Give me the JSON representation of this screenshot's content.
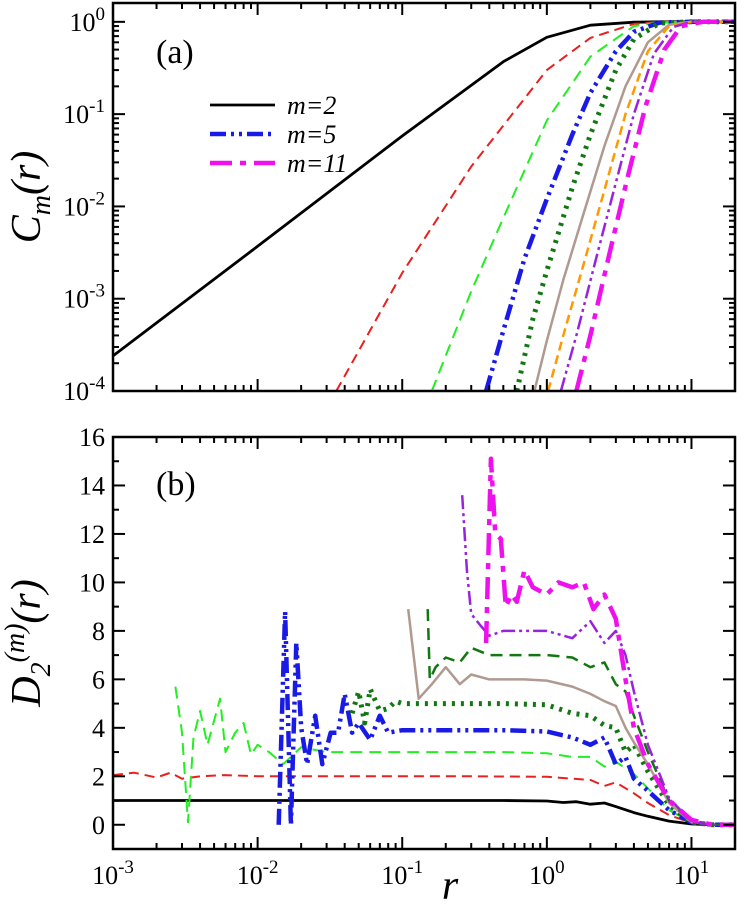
{
  "chart_data": [
    {
      "panel": "(a)",
      "type": "line",
      "xscale": "log",
      "yscale": "log",
      "xlim": [
        0.001,
        20
      ],
      "ylim": [
        0.0001,
        1.6
      ],
      "xlabel": "r",
      "ylabel": "C_m(r)",
      "ylabel_main": "C",
      "ylabel_sub": "m",
      "ylabel_tail": "(r)",
      "ytick_labels": [
        {
          "value": 0.0001,
          "base": "10",
          "exp": "-4"
        },
        {
          "value": 0.001,
          "base": "10",
          "exp": "-3"
        },
        {
          "value": 0.01,
          "base": "10",
          "exp": "-2"
        },
        {
          "value": 0.1,
          "base": "10",
          "exp": "-1"
        },
        {
          "value": 1,
          "base": "10",
          "exp": "0"
        }
      ],
      "legend": [
        {
          "label": "m=2",
          "series": "m=2"
        },
        {
          "label": "m=5",
          "series": "m=5"
        },
        {
          "label": "m=11",
          "series": "m=11"
        }
      ],
      "series": [
        {
          "name": "m=2",
          "color": "#000000",
          "dash": "",
          "width": 2.8,
          "x": [
            0.001,
            0.01,
            0.1,
            0.5,
            1,
            2,
            4,
            6,
            10,
            20
          ],
          "y": [
            0.00024,
            0.0037,
            0.058,
            0.37,
            0.68,
            0.92,
            0.99,
            1,
            1,
            1
          ]
        },
        {
          "name": "m=3",
          "color": "#e8201e",
          "dash": "10,6",
          "width": 2,
          "x": [
            0.035,
            0.1,
            0.3,
            1,
            2,
            4,
            6,
            10,
            20
          ],
          "y": [
            0.0001,
            0.0019,
            0.027,
            0.3,
            0.67,
            0.95,
            1,
            1,
            1
          ]
        },
        {
          "name": "m=4",
          "color": "#22ee22",
          "dash": "12,7",
          "width": 2,
          "x": [
            0.16,
            0.3,
            0.5,
            1,
            2,
            4,
            6,
            10,
            20
          ],
          "y": [
            0.0001,
            0.0012,
            0.0075,
            0.085,
            0.42,
            0.9,
            0.99,
            1,
            1
          ]
        },
        {
          "name": "m=5",
          "color": "#1a1ae6",
          "dash": "16,5,3,5,3,5",
          "width": 4.5,
          "x": [
            0.38,
            0.5,
            0.7,
            1,
            1.5,
            2,
            3,
            4,
            6,
            10,
            20
          ],
          "y": [
            0.0001,
            0.00045,
            0.0027,
            0.012,
            0.06,
            0.17,
            0.48,
            0.78,
            0.98,
            1,
            1
          ]
        },
        {
          "name": "m=6",
          "color": "#117711",
          "dash": "3,6",
          "width": 5,
          "x": [
            0.62,
            0.8,
            1,
            1.5,
            2,
            3,
            4,
            6,
            10,
            20
          ],
          "y": [
            0.0001,
            0.0006,
            0.002,
            0.016,
            0.06,
            0.3,
            0.65,
            0.97,
            1,
            1
          ]
        },
        {
          "name": "m=7",
          "color": "#b09a90",
          "dash": "",
          "width": 2.5,
          "x": [
            0.82,
            1,
            1.3,
            1.8,
            2.5,
            3.5,
            5,
            7,
            10,
            20
          ],
          "y": [
            0.0001,
            0.00035,
            0.0016,
            0.0085,
            0.045,
            0.2,
            0.6,
            0.93,
            1,
            1
          ]
        },
        {
          "name": "m=8",
          "color": "#ff9900",
          "dash": "9,5",
          "width": 2.5,
          "x": [
            1.02,
            1.3,
            1.8,
            2.5,
            3.5,
            5,
            7,
            10,
            20
          ],
          "y": [
            0.0001,
            0.0004,
            0.0024,
            0.015,
            0.1,
            0.48,
            0.9,
            1,
            1
          ]
        },
        {
          "name": "m=9",
          "color": "#9922dd",
          "dash": "14,4,3,4,3,4",
          "width": 2.5,
          "x": [
            1.25,
            1.6,
            2.2,
            3,
            4,
            5.5,
            7.5,
            10,
            20
          ],
          "y": [
            0.0001,
            0.0004,
            0.0028,
            0.018,
            0.1,
            0.45,
            0.88,
            1,
            1
          ]
        },
        {
          "name": "m=11",
          "color": "#ee11ee",
          "dash": "22,8,6,8",
          "width": 4.5,
          "x": [
            1.6,
            2,
            2.7,
            3.6,
            4.8,
            6.5,
            8.5,
            12,
            20
          ],
          "y": [
            0.0001,
            0.0004,
            0.003,
            0.02,
            0.12,
            0.5,
            0.9,
            1,
            1
          ]
        }
      ]
    },
    {
      "panel": "(b)",
      "type": "line",
      "xscale": "log",
      "yscale": "linear",
      "xlim": [
        0.001,
        20
      ],
      "ylim": [
        -1,
        16
      ],
      "yticks": [
        0,
        2,
        4,
        6,
        8,
        10,
        12,
        14,
        16
      ],
      "xlabel": "r",
      "ylabel": "D_2^(m)(r)",
      "ylabel_main": "D",
      "ylabel_sub": "2",
      "ylabel_sup": "(m)",
      "ylabel_tail": "(r)",
      "series": [
        {
          "name": "m=2",
          "color": "#000000",
          "dash": "",
          "width": 2.8,
          "x": [
            0.001,
            0.01,
            0.1,
            0.5,
            1,
            1.3,
            1.6,
            2,
            2.5,
            3,
            4,
            5,
            7,
            10,
            14,
            20
          ],
          "y": [
            1,
            1,
            1,
            1,
            0.98,
            0.92,
            0.95,
            0.85,
            0.9,
            0.75,
            0.5,
            0.35,
            0.15,
            0.03,
            0,
            0
          ]
        },
        {
          "name": "m=3",
          "color": "#e8201e",
          "dash": "10,6",
          "width": 2,
          "x": [
            0.001,
            0.0014,
            0.002,
            0.0025,
            0.003,
            0.004,
            0.006,
            0.01,
            0.05,
            0.3,
            1,
            1.5,
            2,
            2.5,
            3,
            4,
            5,
            7,
            10,
            14,
            20
          ],
          "y": [
            2.05,
            2.15,
            1.95,
            2.15,
            1.9,
            2.0,
            2.05,
            2.0,
            2.0,
            2.0,
            1.98,
            1.9,
            1.85,
            1.6,
            1.75,
            1.3,
            0.9,
            0.4,
            0.08,
            0,
            0
          ]
        },
        {
          "name": "m=4",
          "color": "#22ee22",
          "dash": "12,7",
          "width": 2,
          "x": [
            0.0027,
            0.003,
            0.0033,
            0.0036,
            0.004,
            0.0045,
            0.005,
            0.0055,
            0.006,
            0.007,
            0.008,
            0.009,
            0.01,
            0.012,
            0.015,
            0.02,
            0.03,
            0.05,
            0.1,
            0.5,
            1,
            1.5,
            2,
            2.5,
            3,
            4,
            5,
            7,
            10,
            14,
            20
          ],
          "y": [
            5.7,
            3.8,
            0.1,
            3.6,
            4.7,
            3.3,
            4.3,
            5.2,
            3.0,
            3.8,
            4.2,
            2.9,
            3.3,
            3.0,
            2.5,
            3.2,
            3.0,
            3.0,
            3.0,
            3.0,
            2.95,
            2.8,
            2.8,
            2.4,
            2.6,
            2.1,
            1.5,
            0.6,
            0.1,
            0,
            0
          ]
        },
        {
          "name": "m=5",
          "color": "#1a1ae6",
          "dash": "16,5,3,5,3,5",
          "width": 4.5,
          "x": [
            0.014,
            0.0155,
            0.017,
            0.0185,
            0.02,
            0.022,
            0.025,
            0.028,
            0.032,
            0.036,
            0.04,
            0.045,
            0.05,
            0.06,
            0.07,
            0.08,
            0.1,
            0.2,
            0.5,
            1,
            1.5,
            2,
            2.5,
            3,
            3.5,
            4,
            5,
            7,
            10,
            14,
            20
          ],
          "y": [
            0,
            8.8,
            0.0,
            7.5,
            4.0,
            2.5,
            4.5,
            2.5,
            3.8,
            3.8,
            5.4,
            3.8,
            4.2,
            3.5,
            4.5,
            3.8,
            3.9,
            3.9,
            3.9,
            3.85,
            3.6,
            3.3,
            3.6,
            2.5,
            2.8,
            1.9,
            1.4,
            0.6,
            0.1,
            0,
            0
          ]
        },
        {
          "name": "m=6",
          "color": "#117711",
          "dash": "3,6",
          "width": 5,
          "x": [
            0.045,
            0.05,
            0.055,
            0.06,
            0.07,
            0.08,
            0.09,
            0.1,
            0.2,
            0.5,
            1,
            1.5,
            2,
            2.5,
            3,
            3.5,
            4,
            5,
            7,
            10,
            14,
            20
          ],
          "y": [
            4.6,
            5.5,
            4.2,
            5.6,
            4.7,
            4.8,
            5.1,
            5.0,
            5.0,
            5.0,
            4.95,
            4.6,
            4.5,
            4.1,
            4.0,
            3.0,
            3.3,
            2.2,
            0.8,
            0.1,
            0,
            0
          ]
        },
        {
          "name": "m=7",
          "color": "#b09a90",
          "dash": "",
          "width": 2.5,
          "x": [
            0.11,
            0.13,
            0.16,
            0.2,
            0.25,
            0.3,
            0.4,
            0.5,
            0.7,
            1,
            1.5,
            2,
            2.5,
            3,
            3.5,
            4,
            5,
            7,
            10,
            14,
            20
          ],
          "y": [
            8.9,
            5.2,
            5.8,
            6.5,
            5.8,
            6.2,
            6.0,
            6.0,
            6.0,
            5.95,
            5.7,
            5.4,
            5.1,
            4.9,
            4.0,
            3.4,
            2.5,
            0.9,
            0.1,
            0,
            0
          ]
        },
        {
          "name": "m=8",
          "color": "#117711",
          "dash": "12,7",
          "width": 2.5,
          "x": [
            0.15,
            0.155,
            0.17,
            0.2,
            0.25,
            0.3,
            0.4,
            0.5,
            0.7,
            1,
            1.5,
            2,
            2.5,
            3,
            3.5,
            4,
            5,
            7,
            10,
            14,
            20
          ],
          "y": [
            8.9,
            6.0,
            6.5,
            6.9,
            6.7,
            7.3,
            7.0,
            7.0,
            7.0,
            7.0,
            6.9,
            6.5,
            6.7,
            5.8,
            5.5,
            4.5,
            3.0,
            1.0,
            0.1,
            0,
            0
          ]
        },
        {
          "name": "m=9",
          "color": "#9922dd",
          "dash": "14,4,3,4,3,4",
          "width": 2.5,
          "x": [
            0.26,
            0.28,
            0.3,
            0.35,
            0.4,
            0.5,
            0.7,
            1,
            1.5,
            2,
            2.5,
            3,
            3.5,
            4,
            5,
            7,
            10,
            14,
            20
          ],
          "y": [
            13.6,
            10.5,
            8.7,
            8.2,
            7.8,
            8.0,
            8.0,
            8.0,
            7.7,
            8.4,
            7.5,
            8.0,
            7.0,
            5.5,
            3.3,
            1.1,
            0.12,
            0,
            0
          ]
        },
        {
          "name": "m=11",
          "color": "#ee11ee",
          "dash": "22,8,6,8",
          "width": 4.5,
          "x": [
            0.38,
            0.41,
            0.44,
            0.48,
            0.52,
            0.57,
            0.62,
            0.7,
            0.8,
            1,
            1.2,
            1.5,
            1.8,
            2.1,
            2.5,
            3,
            3.5,
            4,
            5,
            7,
            10,
            14,
            20
          ],
          "y": [
            7.5,
            15.1,
            12.0,
            11.8,
            9.0,
            9.5,
            9.2,
            10.5,
            9.8,
            9.5,
            10.0,
            9.8,
            10.0,
            8.9,
            9.5,
            8.5,
            6.0,
            4.0,
            2.5,
            1.0,
            0.2,
            0,
            0
          ]
        }
      ]
    }
  ],
  "shared": {
    "xtick_labels": [
      {
        "value": 0.001,
        "base": "10",
        "exp": "-3"
      },
      {
        "value": 0.01,
        "base": "10",
        "exp": "-2"
      },
      {
        "value": 0.1,
        "base": "10",
        "exp": "-1"
      },
      {
        "value": 1,
        "base": "10",
        "exp": "0"
      },
      {
        "value": 10,
        "base": "10",
        "exp": "1"
      }
    ]
  }
}
